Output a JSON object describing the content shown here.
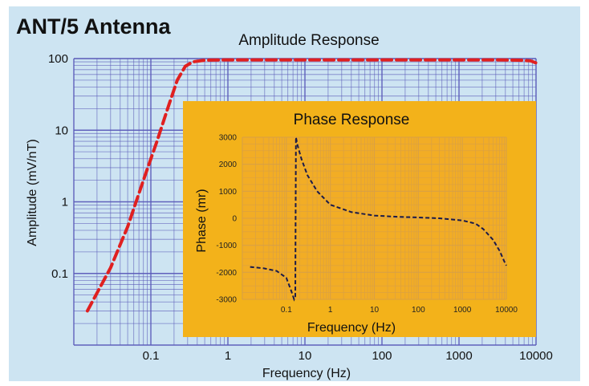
{
  "title": "ANT/5 Antenna",
  "colors": {
    "background": "#cde4f2",
    "main_grid": "#5a5ab8",
    "amplitude_line": "#e02020",
    "inset_background": "#f3b21a",
    "inset_grid": "#d9a044",
    "phase_line": "#1a1a4a"
  },
  "chart_data": [
    {
      "type": "line",
      "title": "Amplitude Response",
      "xlabel": "Frequency  (Hz)",
      "ylabel": "Amplitude  (mV/nT)",
      "x_scale": "log",
      "y_scale": "log",
      "xlim": [
        0.01,
        10000
      ],
      "ylim": [
        0.01,
        100
      ],
      "x_ticks": [
        {
          "value": 0.1,
          "label": "0.1"
        },
        {
          "value": 1,
          "label": "1"
        },
        {
          "value": 10,
          "label": "10"
        },
        {
          "value": 100,
          "label": "100"
        },
        {
          "value": 1000,
          "label": "1000"
        },
        {
          "value": 10000,
          "label": "10000"
        }
      ],
      "y_ticks": [
        {
          "value": 0.1,
          "label": "0.1"
        },
        {
          "value": 1,
          "label": "1"
        },
        {
          "value": 10,
          "label": "10"
        },
        {
          "value": 100,
          "label": "100"
        }
      ],
      "grid": true,
      "series": [
        {
          "line_style": "dashed",
          "x": [
            0.015,
            0.03,
            0.05,
            0.08,
            0.12,
            0.17,
            0.22,
            0.28,
            0.35,
            0.5,
            1,
            10,
            100,
            1000,
            3000,
            6000,
            8500,
            10000
          ],
          "y": [
            0.03,
            0.12,
            0.45,
            2.0,
            7.0,
            22,
            50,
            78,
            90,
            95,
            96,
            96,
            96,
            96,
            96,
            95,
            93,
            87
          ]
        }
      ]
    },
    {
      "type": "line",
      "title": "Phase Response",
      "xlabel": "Frequency  (Hz)",
      "ylabel": "Phase  (mr)",
      "x_scale": "log",
      "y_scale": "linear",
      "xlim": [
        0.01,
        10000
      ],
      "ylim": [
        -3000,
        3000
      ],
      "x_ticks": [
        {
          "value": 0.1,
          "label": "0.1"
        },
        {
          "value": 1,
          "label": "1"
        },
        {
          "value": 10,
          "label": "10"
        },
        {
          "value": 100,
          "label": "100"
        },
        {
          "value": 1000,
          "label": "1000"
        },
        {
          "value": 10000,
          "label": "10000"
        }
      ],
      "y_ticks": [
        {
          "value": 3000,
          "label": "3000"
        },
        {
          "value": 2000,
          "label": "2000"
        },
        {
          "value": 1000,
          "label": "1000"
        },
        {
          "value": 0,
          "label": "0"
        },
        {
          "value": -1000,
          "label": "-1000"
        },
        {
          "value": -2000,
          "label": "-2000"
        },
        {
          "value": -3000,
          "label": "-3000"
        }
      ],
      "grid": true,
      "series": [
        {
          "line_style": "dashed",
          "x": [
            0.015,
            0.03,
            0.06,
            0.1,
            0.13,
            0.15,
            0.16,
            0.165,
            0.18,
            0.22,
            0.3,
            0.5,
            1,
            3,
            10,
            30,
            100,
            300,
            1000,
            2000,
            3000,
            5000,
            7000,
            9000,
            10000
          ],
          "y": [
            -1800,
            -1850,
            -1950,
            -2200,
            -2700,
            -3000,
            -2900,
            3000,
            2700,
            2200,
            1600,
            1000,
            500,
            230,
            100,
            60,
            30,
            0,
            -80,
            -200,
            -400,
            -800,
            -1200,
            -1600,
            -1750
          ]
        }
      ]
    }
  ]
}
